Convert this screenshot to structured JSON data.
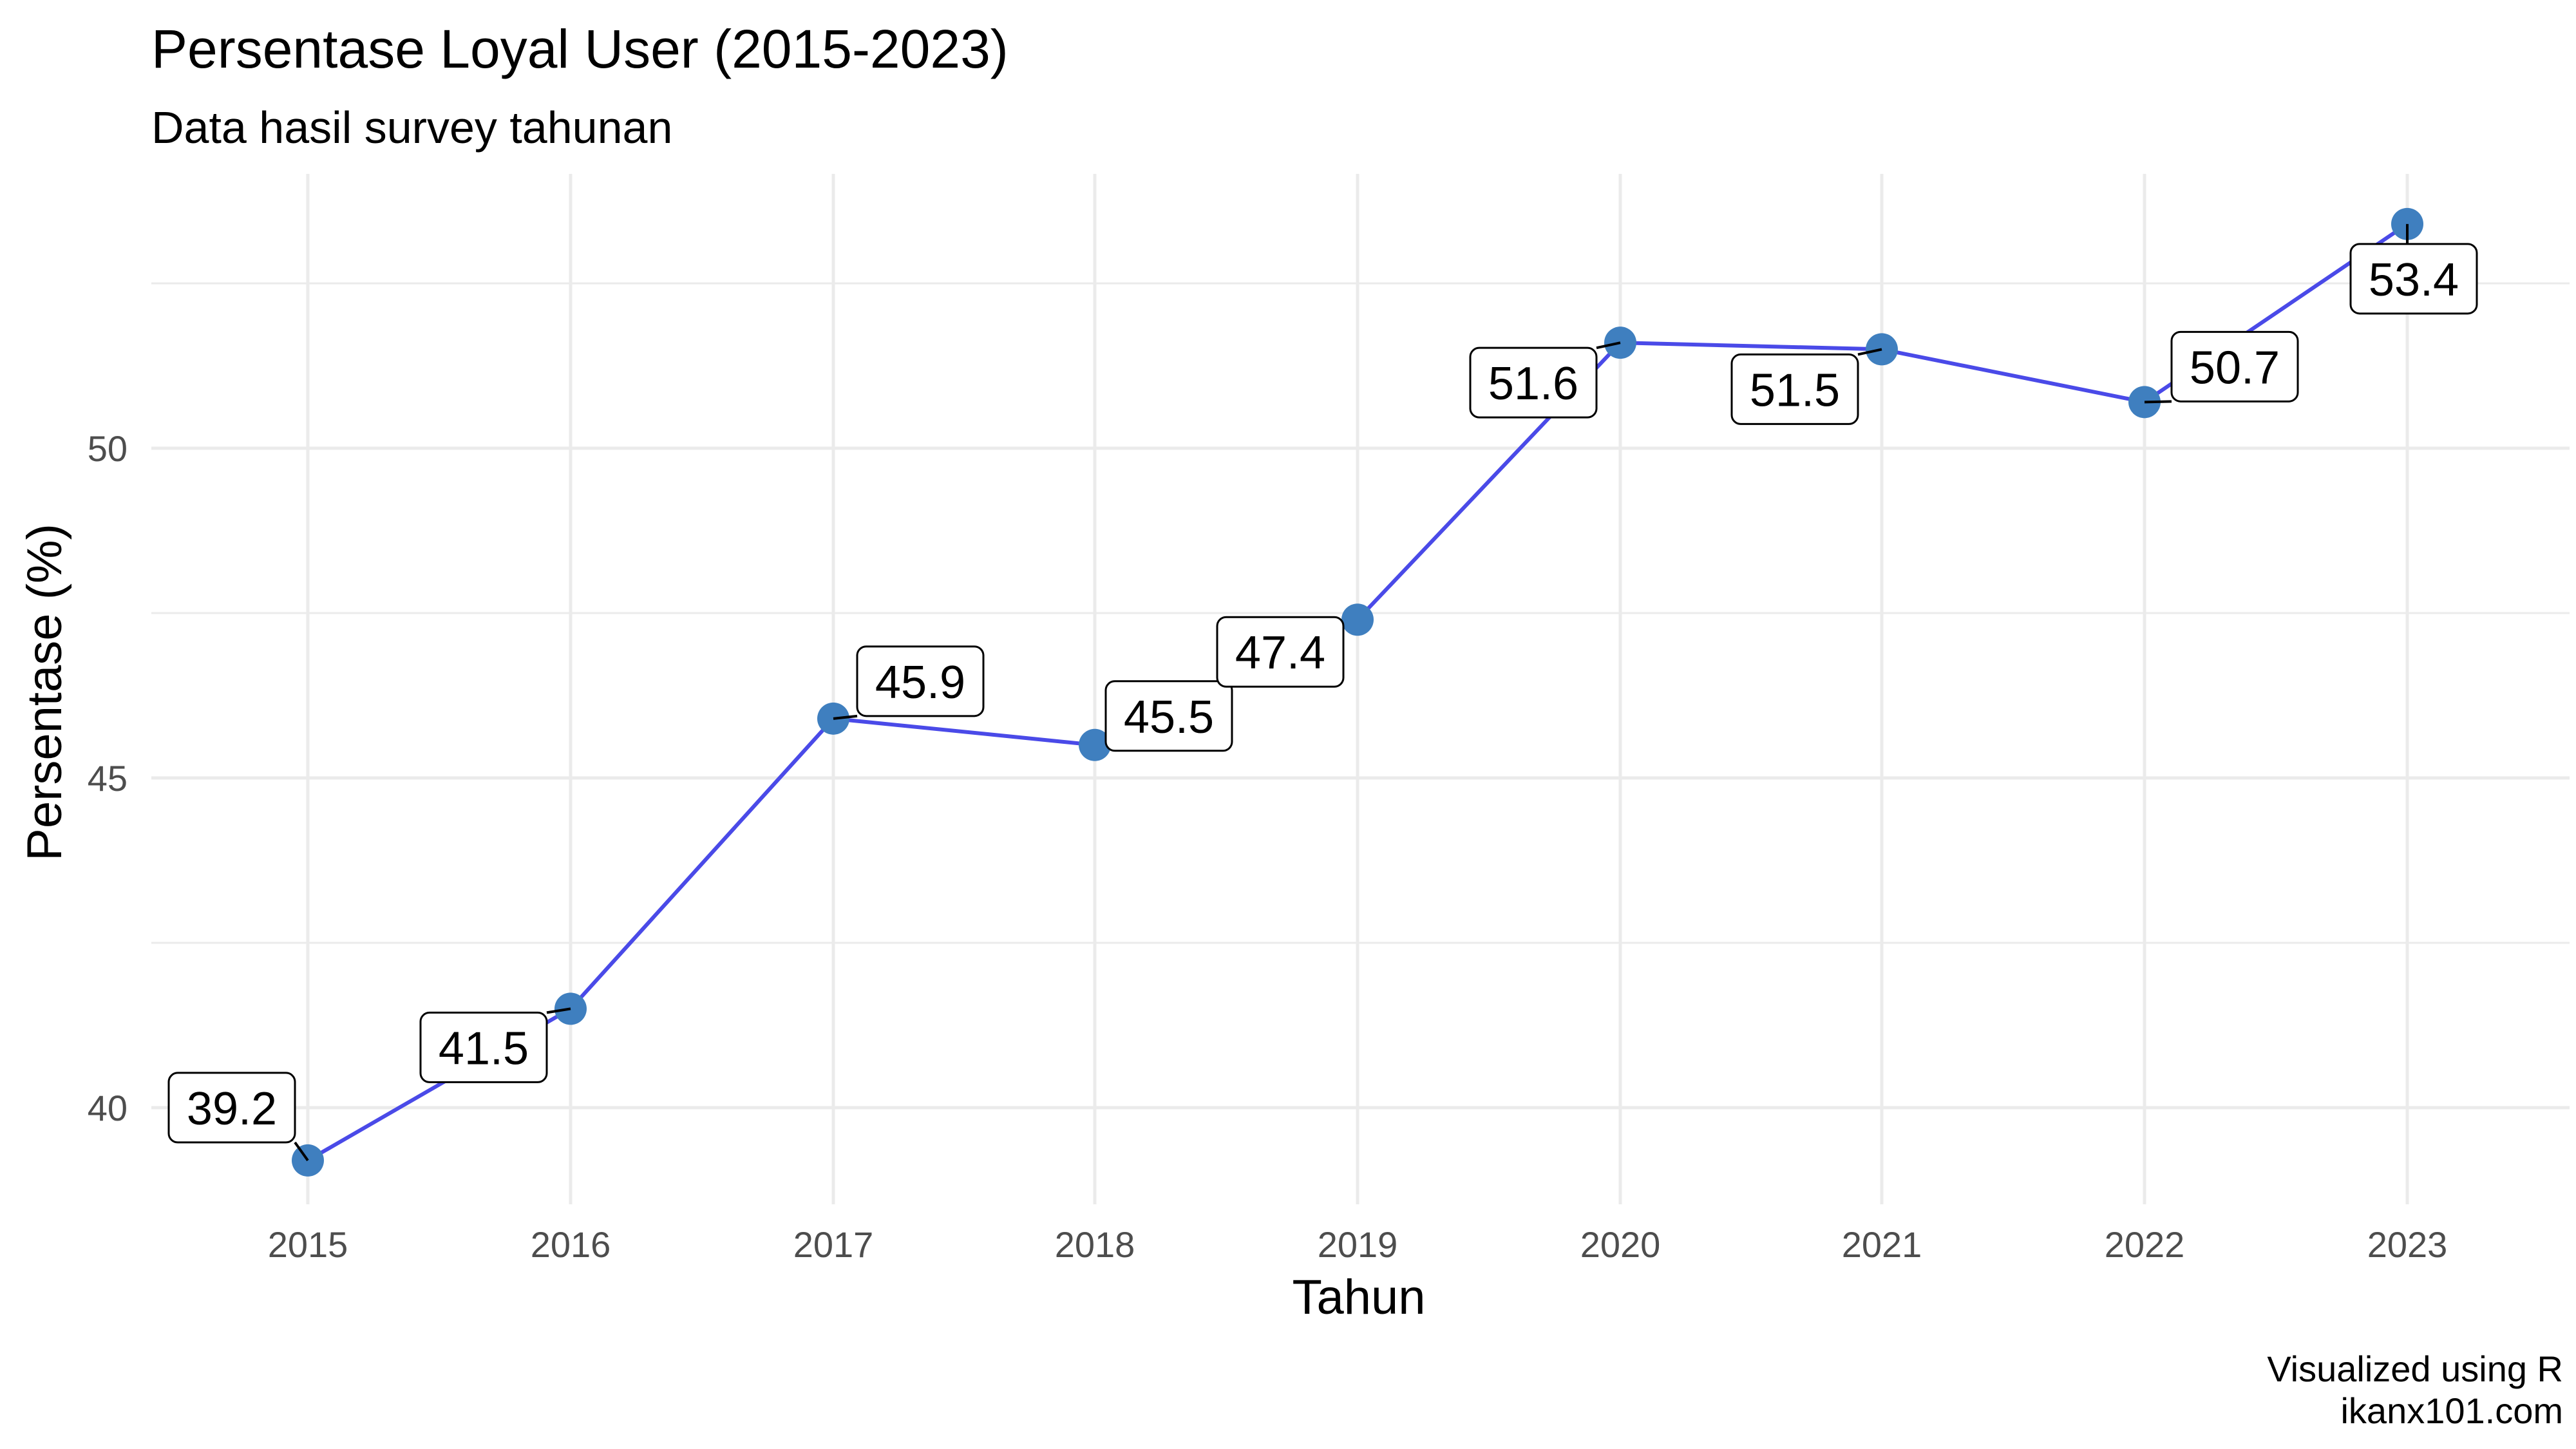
{
  "colors": {
    "line": "#4a4ae8",
    "point": "#3f7fbf",
    "grid": "#ebebeb",
    "tick_text": "#4d4d4d"
  },
  "chart_data": {
    "type": "line",
    "title": "Persentase Loyal User (2015-2023)",
    "subtitle": "Data hasil survey tahunan",
    "xlabel": "Tahun",
    "ylabel": "Persentase (%)",
    "caption_line1": "Visualized using R",
    "caption_line2": "ikanx101.com",
    "x": [
      2015,
      2016,
      2017,
      2018,
      2019,
      2020,
      2021,
      2022,
      2023
    ],
    "values": [
      39.2,
      41.5,
      45.9,
      45.5,
      47.4,
      51.6,
      51.5,
      50.7,
      53.4
    ],
    "labels": [
      "39.2",
      "41.5",
      "45.9",
      "45.5",
      "47.4",
      "51.6",
      "51.5",
      "50.7",
      "53.4"
    ],
    "x_ticks": [
      "2015",
      "2016",
      "2017",
      "2018",
      "2019",
      "2020",
      "2021",
      "2022",
      "2023"
    ],
    "y_ticks": [
      40,
      45,
      50
    ],
    "y_tick_labels": [
      "40",
      "45",
      "50"
    ],
    "ylim": [
      38.4,
      54.2
    ],
    "grid": true,
    "legend": "none"
  }
}
